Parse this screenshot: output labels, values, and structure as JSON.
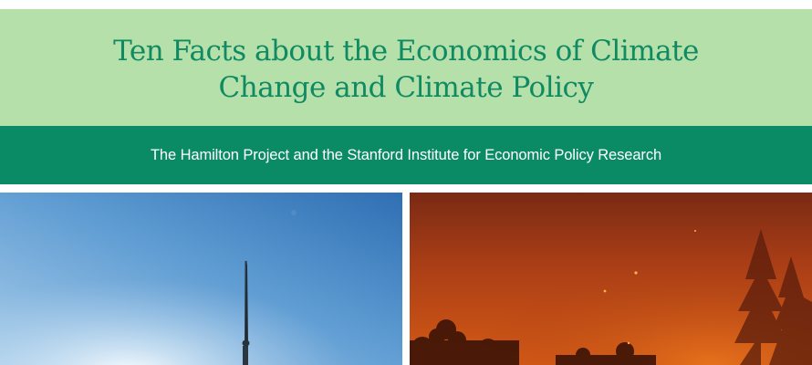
{
  "header": {
    "title_line1": "Ten Facts about the Economics of Climate",
    "title_line2": "Change and Climate Policy",
    "subtitle": "The Hamilton Project and the Stanford Institute for Economic Policy Research"
  },
  "colors": {
    "title_band": "#b6e0a9",
    "title_text": "#0f8a62",
    "subtitle_band": "#0b8a66",
    "subtitle_text": "#ffffff"
  },
  "images": {
    "left": "wind-turbine-photo",
    "right": "wildfire-forest-photo"
  }
}
